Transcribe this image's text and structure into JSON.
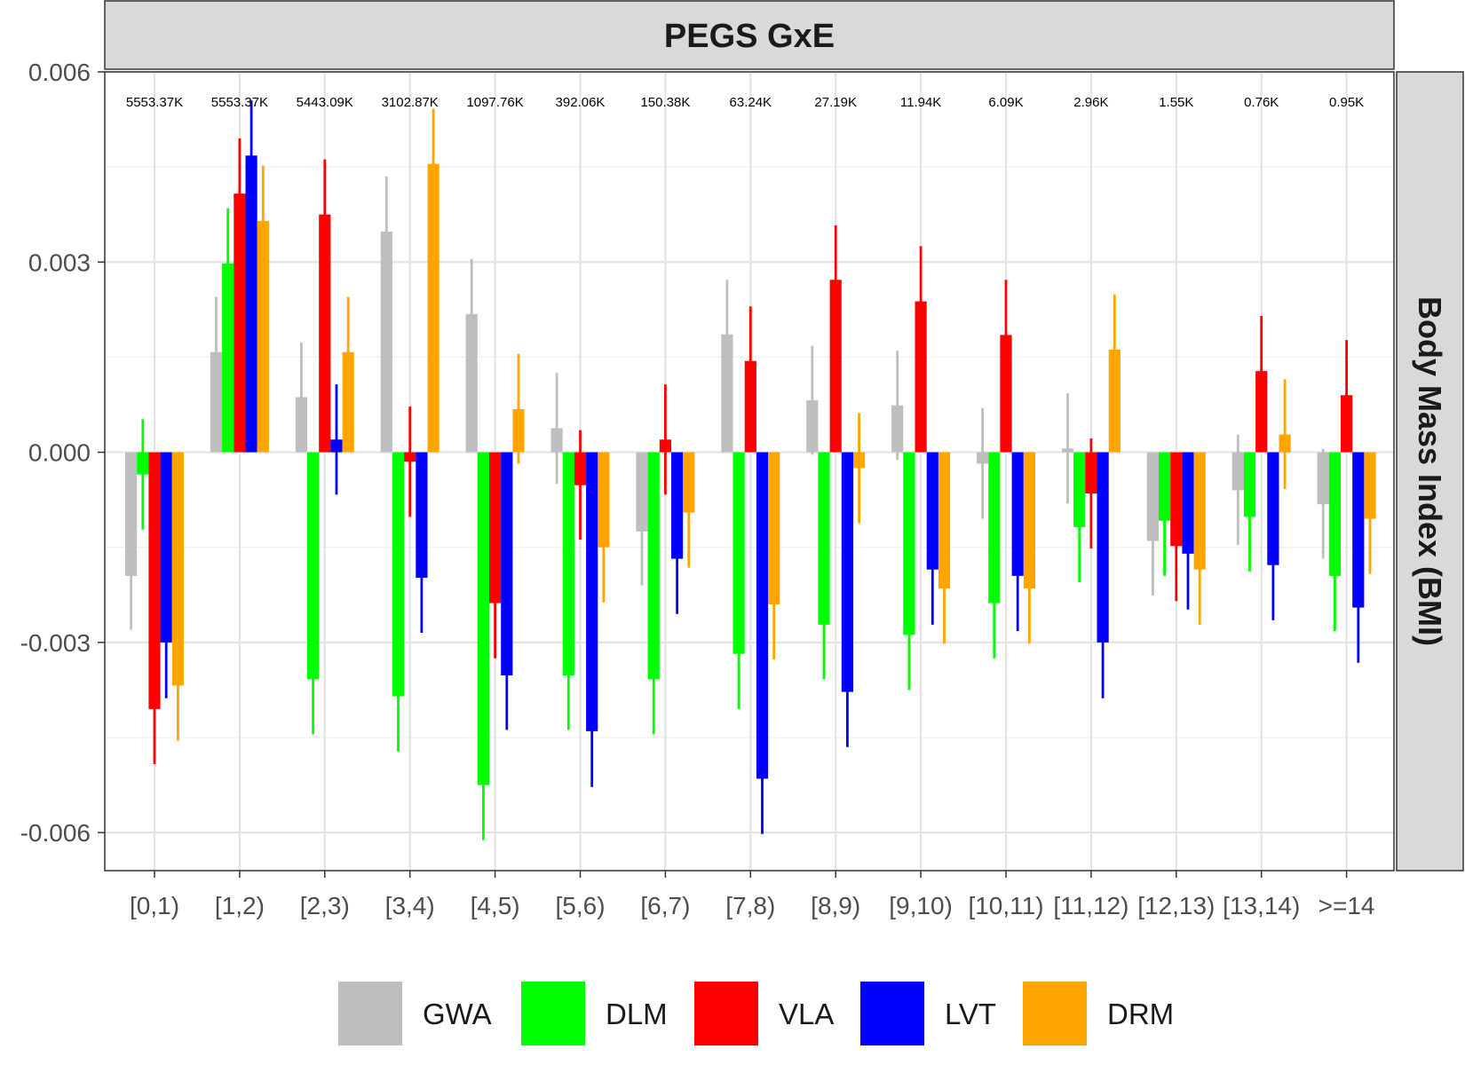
{
  "chart_data": {
    "type": "bar",
    "title": "PEGS GxE",
    "facet_label_right": "Body Mass Index (BMI)",
    "xlabel": "",
    "ylabel": "",
    "ylim": [
      -0.0066,
      0.006
    ],
    "yticks": [
      -0.006,
      -0.003,
      0.0,
      0.003,
      0.006
    ],
    "ytick_labels": [
      "-0.006",
      "-0.003",
      "0.000",
      "0.003",
      "0.006"
    ],
    "grid": true,
    "legend_position": "bottom",
    "categories": [
      "[0,1)",
      "[1,2)",
      "[2,3)",
      "[3,4)",
      "[4,5)",
      "[5,6)",
      "[6,7)",
      "[7,8)",
      "[8,9)",
      "[9,10)",
      "[10,11)",
      "[11,12)",
      "[12,13)",
      "[13,14)",
      ">=14"
    ],
    "counts": [
      "5553.37K",
      "5553.37K",
      "5443.09K",
      "3102.87K",
      "1097.76K",
      "392.06K",
      "150.38K",
      "63.24K",
      "27.19K",
      "11.94K",
      "6.09K",
      "2.96K",
      "1.55K",
      "0.76K",
      "0.95K"
    ],
    "series": [
      {
        "name": "GWA",
        "color": "#bebebe",
        "values": [
          -0.00195,
          0.00158,
          0.00087,
          0.00348,
          0.00218,
          0.00038,
          -0.00125,
          0.00186,
          0.00082,
          0.00074,
          -0.00018,
          6e-05,
          -0.0014,
          -0.0006,
          -0.00082
        ],
        "upper": [
          -0.0011,
          0.00245,
          0.00173,
          0.00435,
          0.00305,
          0.00125,
          -0.0004,
          0.00272,
          0.00168,
          0.0016,
          0.0007,
          0.00093,
          -0.00054,
          0.00028,
          5e-05
        ],
        "lower": [
          -0.0028,
          0.00072,
          0.0,
          0.00262,
          0.00132,
          -0.0005,
          -0.0021,
          0.001,
          -4e-05,
          -0.00012,
          -0.00105,
          -0.00081,
          -0.00226,
          -0.00146,
          -0.00168
        ]
      },
      {
        "name": "DLM",
        "color": "#00ff00",
        "values": [
          -0.00035,
          0.00298,
          -0.00358,
          -0.00385,
          -0.00525,
          -0.00352,
          -0.00358,
          -0.00318,
          -0.00272,
          -0.00288,
          -0.00238,
          -0.00118,
          -0.00108,
          -0.00102,
          -0.00195
        ],
        "upper": [
          0.00052,
          0.00385,
          -0.00272,
          -0.00298,
          -0.00438,
          -0.00265,
          -0.00272,
          -0.00232,
          -0.00185,
          -0.00202,
          -0.00152,
          -0.00032,
          -0.00022,
          -0.00015,
          -0.00108
        ],
        "lower": [
          -0.00122,
          0.00212,
          -0.00445,
          -0.00472,
          -0.00612,
          -0.00438,
          -0.00445,
          -0.00405,
          -0.00358,
          -0.00375,
          -0.00325,
          -0.00205,
          -0.00195,
          -0.00188,
          -0.00282
        ]
      },
      {
        "name": "VLA",
        "color": "#ff0000",
        "values": [
          -0.00405,
          0.00408,
          0.00375,
          -0.00015,
          -0.00238,
          -0.00052,
          0.0002,
          0.00144,
          0.00272,
          0.00238,
          0.00185,
          -0.00065,
          -0.00148,
          0.00128,
          0.0009
        ],
        "upper": [
          -0.00318,
          0.00495,
          0.00462,
          0.00072,
          -0.00152,
          0.00035,
          0.00107,
          0.0023,
          0.00358,
          0.00325,
          0.00272,
          0.00022,
          -0.00062,
          0.00215,
          0.00177
        ],
        "lower": [
          -0.00492,
          0.00322,
          0.00288,
          -0.00102,
          -0.00325,
          -0.00138,
          -0.00067,
          0.00058,
          0.00185,
          0.00152,
          0.00098,
          -0.00152,
          -0.00235,
          0.00042,
          3e-05
        ]
      },
      {
        "name": "LVT",
        "color": "#0000ff",
        "values": [
          -0.003,
          0.00468,
          0.0002,
          -0.00198,
          -0.00352,
          -0.0044,
          -0.00168,
          -0.00515,
          -0.00378,
          -0.00185,
          -0.00195,
          -0.003,
          -0.0016,
          -0.00178,
          -0.00245
        ],
        "upper": [
          -0.00212,
          0.00555,
          0.00107,
          -0.00112,
          -0.00265,
          -0.00352,
          -0.00082,
          -0.00428,
          -0.00292,
          -0.00098,
          -0.00108,
          -0.00212,
          -0.00072,
          -0.00092,
          -0.00158
        ],
        "lower": [
          -0.00388,
          0.00382,
          -0.00067,
          -0.00285,
          -0.00438,
          -0.00528,
          -0.00255,
          -0.00602,
          -0.00465,
          -0.00272,
          -0.00282,
          -0.00388,
          -0.00248,
          -0.00265,
          -0.00332
        ]
      },
      {
        "name": "DRM",
        "color": "#ffa500",
        "values": [
          -0.00368,
          0.00365,
          0.00158,
          0.00455,
          0.00068,
          -0.0015,
          -0.00095,
          -0.0024,
          -0.00025,
          -0.00215,
          -0.00215,
          0.00162,
          -0.00185,
          0.00028,
          -0.00105
        ],
        "upper": [
          -0.00282,
          0.00452,
          0.00245,
          0.00542,
          0.00155,
          -0.00063,
          -8e-05,
          -0.00152,
          0.00062,
          -0.00128,
          -0.00128,
          0.00249,
          -0.00098,
          0.00115,
          -0.00018
        ],
        "lower": [
          -0.00455,
          0.00278,
          0.00072,
          0.00368,
          -0.00018,
          -0.00237,
          -0.00182,
          -0.00327,
          -0.00112,
          -0.00302,
          -0.00302,
          0.00075,
          -0.00272,
          -0.00058,
          -0.00192
        ]
      }
    ]
  }
}
